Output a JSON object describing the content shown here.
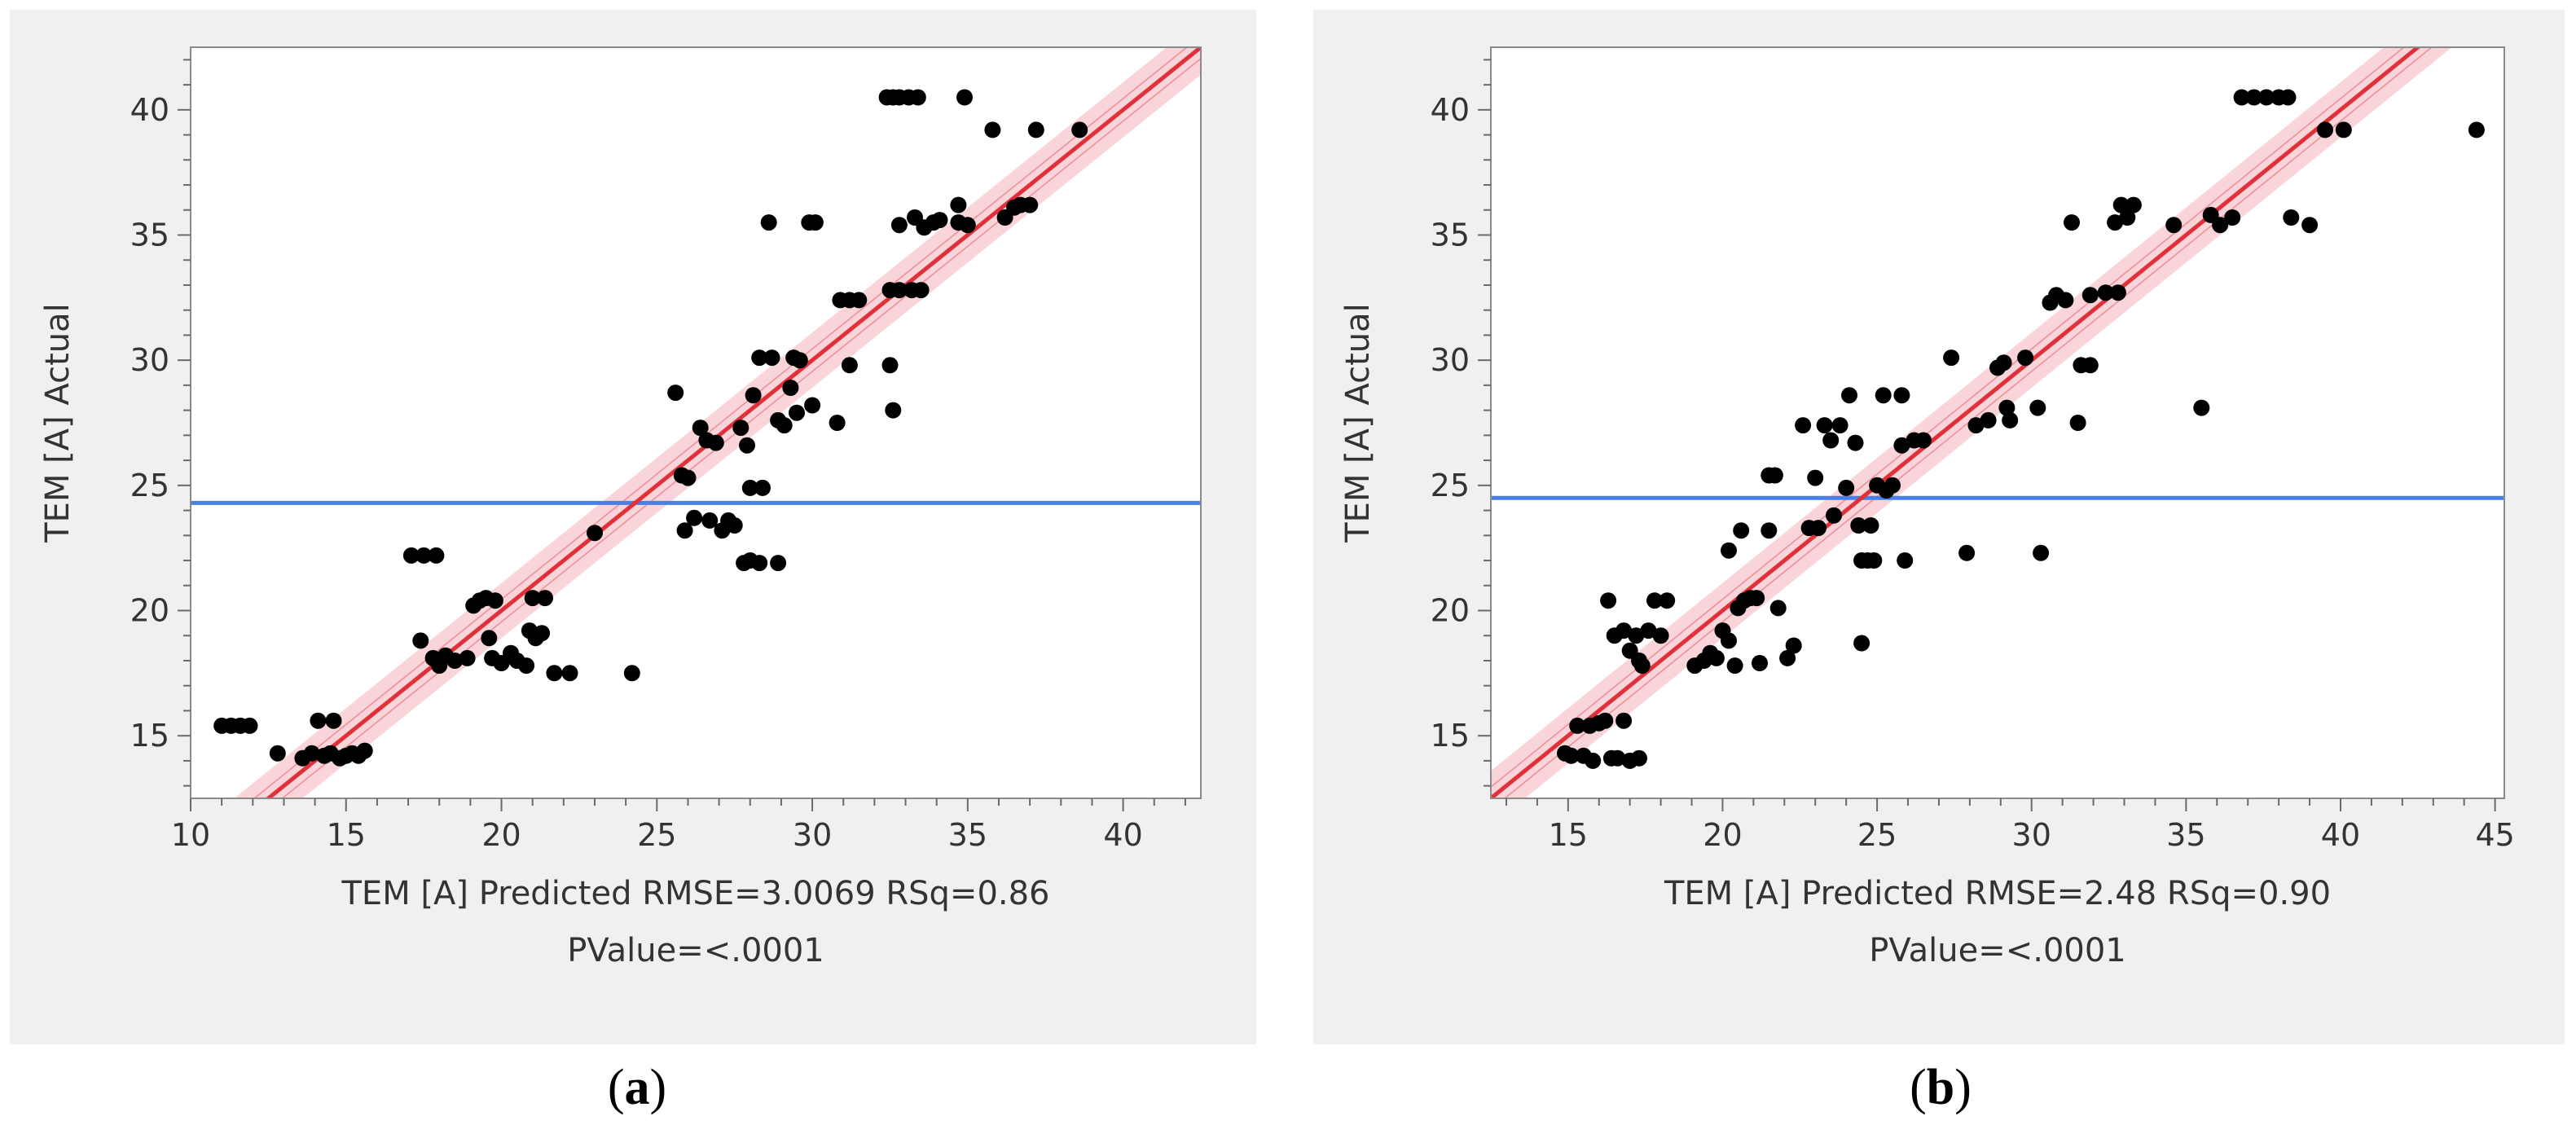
{
  "chart_data": [
    {
      "type": "scatter",
      "ylabel": "TEM [A] Actual",
      "xlabel_line1": "TEM [A] Predicted RMSE=3.0069 RSq=0.86",
      "xlabel_line2": "PValue=<.0001",
      "caption_letter": "a",
      "xlim": [
        10,
        42.5
      ],
      "ylim": [
        12.5,
        42.5
      ],
      "xticks": [
        10,
        15,
        20,
        25,
        30,
        35,
        40
      ],
      "yticks": [
        15,
        20,
        25,
        30,
        35,
        40
      ],
      "mean_line": 24.3,
      "fit": {
        "slope": 1.0,
        "intercept": 0.0
      },
      "line_colors": {
        "fit": "#e0303a",
        "band": "#f7c6cb",
        "mean": "#4a7fe6",
        "points": "#000000"
      },
      "points": [
        [
          11.0,
          15.4
        ],
        [
          11.3,
          15.4
        ],
        [
          11.6,
          15.4
        ],
        [
          11.9,
          15.4
        ],
        [
          12.8,
          14.3
        ],
        [
          13.6,
          14.1
        ],
        [
          13.9,
          14.3
        ],
        [
          14.1,
          15.6
        ],
        [
          14.3,
          14.2
        ],
        [
          14.5,
          14.3
        ],
        [
          14.6,
          15.6
        ],
        [
          14.8,
          14.1
        ],
        [
          15.0,
          14.2
        ],
        [
          15.2,
          14.3
        ],
        [
          15.4,
          14.2
        ],
        [
          15.6,
          14.4
        ],
        [
          17.1,
          22.2
        ],
        [
          17.5,
          22.2
        ],
        [
          17.9,
          22.2
        ],
        [
          17.4,
          18.8
        ],
        [
          17.8,
          18.1
        ],
        [
          18.0,
          17.8
        ],
        [
          18.2,
          18.2
        ],
        [
          18.5,
          18.0
        ],
        [
          18.9,
          18.1
        ],
        [
          19.1,
          20.2
        ],
        [
          19.3,
          20.4
        ],
        [
          19.5,
          20.5
        ],
        [
          19.8,
          20.4
        ],
        [
          19.6,
          18.9
        ],
        [
          20.0,
          17.9
        ],
        [
          19.7,
          18.1
        ],
        [
          20.3,
          18.3
        ],
        [
          20.5,
          18.0
        ],
        [
          20.8,
          17.8
        ],
        [
          20.9,
          19.2
        ],
        [
          21.1,
          18.9
        ],
        [
          21.3,
          19.1
        ],
        [
          21.0,
          20.5
        ],
        [
          21.4,
          20.5
        ],
        [
          21.7,
          17.5
        ],
        [
          22.2,
          17.5
        ],
        [
          23.0,
          23.1
        ],
        [
          24.2,
          17.5
        ],
        [
          25.6,
          28.7
        ],
        [
          25.8,
          25.4
        ],
        [
          26.0,
          25.3
        ],
        [
          25.9,
          23.2
        ],
        [
          26.2,
          23.7
        ],
        [
          26.4,
          27.3
        ],
        [
          26.6,
          26.8
        ],
        [
          26.9,
          26.7
        ],
        [
          26.7,
          23.6
        ],
        [
          27.1,
          23.2
        ],
        [
          27.3,
          23.6
        ],
        [
          27.5,
          23.4
        ],
        [
          27.7,
          27.3
        ],
        [
          27.9,
          26.6
        ],
        [
          28.1,
          28.6
        ],
        [
          27.8,
          21.9
        ],
        [
          28.0,
          22.0
        ],
        [
          28.3,
          21.9
        ],
        [
          28.9,
          21.9
        ],
        [
          28.0,
          24.9
        ],
        [
          28.4,
          24.9
        ],
        [
          28.7,
          30.1
        ],
        [
          28.3,
          30.1
        ],
        [
          28.6,
          35.5
        ],
        [
          28.9,
          27.6
        ],
        [
          29.1,
          27.4
        ],
        [
          29.3,
          28.9
        ],
        [
          29.5,
          27.9
        ],
        [
          29.4,
          30.1
        ],
        [
          29.6,
          30.0
        ],
        [
          29.9,
          35.5
        ],
        [
          30.1,
          35.5
        ],
        [
          30.0,
          28.2
        ],
        [
          30.8,
          27.5
        ],
        [
          30.9,
          32.4
        ],
        [
          31.2,
          32.4
        ],
        [
          31.5,
          32.4
        ],
        [
          31.2,
          29.8
        ],
        [
          32.4,
          40.5
        ],
        [
          32.6,
          40.5
        ],
        [
          32.8,
          40.5
        ],
        [
          33.1,
          40.5
        ],
        [
          33.4,
          40.5
        ],
        [
          34.9,
          40.5
        ],
        [
          32.5,
          32.8
        ],
        [
          32.8,
          32.8
        ],
        [
          33.2,
          32.8
        ],
        [
          33.5,
          32.8
        ],
        [
          32.5,
          29.8
        ],
        [
          32.6,
          28.0
        ],
        [
          32.8,
          35.4
        ],
        [
          33.3,
          35.7
        ],
        [
          33.6,
          35.3
        ],
        [
          33.9,
          35.5
        ],
        [
          34.1,
          35.6
        ],
        [
          34.7,
          35.5
        ],
        [
          34.7,
          36.2
        ],
        [
          35.0,
          35.4
        ],
        [
          35.8,
          39.2
        ],
        [
          37.2,
          39.2
        ],
        [
          38.6,
          39.2
        ],
        [
          36.2,
          35.7
        ],
        [
          36.5,
          36.1
        ],
        [
          36.7,
          36.2
        ],
        [
          37.0,
          36.2
        ]
      ]
    },
    {
      "type": "scatter",
      "ylabel": "TEM [A] Actual",
      "xlabel_line1": "TEM [A] Predicted RMSE=2.48 RSq=0.90",
      "xlabel_line2": "PValue=<.0001",
      "caption_letter": "b",
      "xlim": [
        12.5,
        45.3
      ],
      "ylim": [
        12.5,
        42.5
      ],
      "xticks": [
        15,
        20,
        25,
        30,
        35,
        40,
        45
      ],
      "yticks": [
        15,
        20,
        25,
        30,
        35,
        40
      ],
      "mean_line": 24.5,
      "fit": {
        "slope": 1.0,
        "intercept": 0.0
      },
      "line_colors": {
        "fit": "#e0303a",
        "band": "#f7c6cb",
        "mean": "#4a7fe6",
        "points": "#000000"
      },
      "points": [
        [
          14.9,
          14.3
        ],
        [
          15.1,
          14.2
        ],
        [
          15.3,
          15.4
        ],
        [
          15.5,
          14.2
        ],
        [
          15.7,
          15.4
        ],
        [
          15.8,
          14.0
        ],
        [
          16.0,
          15.5
        ],
        [
          16.2,
          15.6
        ],
        [
          16.4,
          14.1
        ],
        [
          16.6,
          14.1
        ],
        [
          16.8,
          15.6
        ],
        [
          17.0,
          14.0
        ],
        [
          17.3,
          14.1
        ],
        [
          16.3,
          20.4
        ],
        [
          16.5,
          19.0
        ],
        [
          16.8,
          19.2
        ],
        [
          17.0,
          18.4
        ],
        [
          17.2,
          19.0
        ],
        [
          17.4,
          17.8
        ],
        [
          17.6,
          19.2
        ],
        [
          17.8,
          20.4
        ],
        [
          18.0,
          19.0
        ],
        [
          18.2,
          20.4
        ],
        [
          17.3,
          18.0
        ],
        [
          19.1,
          17.8
        ],
        [
          19.4,
          18.0
        ],
        [
          19.6,
          18.3
        ],
        [
          19.8,
          18.1
        ],
        [
          20.0,
          19.2
        ],
        [
          20.2,
          18.8
        ],
        [
          20.4,
          17.8
        ],
        [
          20.5,
          20.1
        ],
        [
          20.7,
          20.4
        ],
        [
          20.9,
          20.5
        ],
        [
          21.1,
          20.5
        ],
        [
          20.2,
          22.4
        ],
        [
          20.6,
          23.2
        ],
        [
          21.5,
          23.2
        ],
        [
          21.5,
          25.4
        ],
        [
          21.7,
          25.4
        ],
        [
          21.8,
          20.1
        ],
        [
          22.1,
          18.1
        ],
        [
          22.3,
          18.6
        ],
        [
          21.2,
          17.9
        ],
        [
          22.6,
          27.4
        ],
        [
          22.8,
          23.3
        ],
        [
          23.0,
          25.3
        ],
        [
          23.1,
          23.3
        ],
        [
          23.3,
          27.4
        ],
        [
          23.5,
          26.8
        ],
        [
          23.6,
          23.8
        ],
        [
          23.8,
          27.4
        ],
        [
          24.0,
          24.9
        ],
        [
          24.1,
          28.6
        ],
        [
          24.3,
          26.7
        ],
        [
          24.4,
          23.4
        ],
        [
          24.5,
          22.0
        ],
        [
          24.7,
          22.0
        ],
        [
          24.8,
          23.4
        ],
        [
          24.9,
          22.0
        ],
        [
          24.5,
          18.7
        ],
        [
          25.0,
          25.0
        ],
        [
          25.2,
          28.6
        ],
        [
          25.3,
          24.8
        ],
        [
          25.5,
          25.0
        ],
        [
          25.8,
          28.6
        ],
        [
          25.9,
          22.0
        ],
        [
          25.8,
          26.6
        ],
        [
          26.2,
          26.8
        ],
        [
          26.5,
          26.8
        ],
        [
          27.4,
          30.1
        ],
        [
          27.9,
          22.3
        ],
        [
          28.2,
          27.4
        ],
        [
          28.6,
          27.6
        ],
        [
          28.9,
          29.7
        ],
        [
          29.1,
          29.9
        ],
        [
          29.2,
          28.1
        ],
        [
          29.3,
          27.6
        ],
        [
          29.8,
          30.1
        ],
        [
          30.2,
          28.1
        ],
        [
          30.3,
          22.3
        ],
        [
          30.6,
          32.3
        ],
        [
          30.8,
          32.6
        ],
        [
          31.1,
          32.4
        ],
        [
          31.3,
          35.5
        ],
        [
          31.6,
          29.8
        ],
        [
          31.9,
          29.8
        ],
        [
          31.5,
          27.5
        ],
        [
          31.9,
          32.6
        ],
        [
          32.4,
          32.7
        ],
        [
          32.8,
          32.7
        ],
        [
          32.7,
          35.5
        ],
        [
          32.9,
          36.2
        ],
        [
          33.1,
          35.7
        ],
        [
          33.3,
          36.2
        ],
        [
          34.6,
          35.4
        ],
        [
          35.5,
          28.1
        ],
        [
          35.8,
          35.8
        ],
        [
          36.1,
          35.4
        ],
        [
          36.5,
          35.7
        ],
        [
          36.8,
          40.5
        ],
        [
          37.2,
          40.5
        ],
        [
          37.6,
          40.5
        ],
        [
          38.0,
          40.5
        ],
        [
          38.3,
          40.5
        ],
        [
          38.4,
          35.7
        ],
        [
          39.0,
          35.4
        ],
        [
          39.5,
          39.2
        ],
        [
          40.1,
          39.2
        ],
        [
          44.4,
          39.2
        ]
      ]
    }
  ]
}
